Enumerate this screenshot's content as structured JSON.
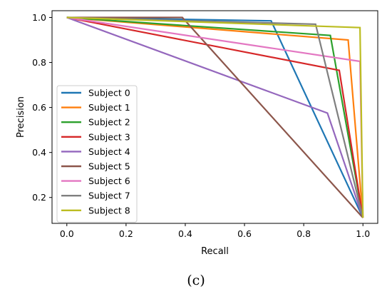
{
  "caption": "(c)",
  "chart_data": {
    "type": "line",
    "xlabel": "Recall",
    "ylabel": "Precision",
    "xlim": [
      -0.05,
      1.05
    ],
    "ylim": [
      0.085,
      1.03
    ],
    "xticks": [
      "0.0",
      "0.2",
      "0.4",
      "0.6",
      "0.8",
      "1.0"
    ],
    "yticks": [
      "0.2",
      "0.4",
      "0.6",
      "0.8",
      "1.0"
    ],
    "grid": false,
    "legend_position": "lower-left",
    "series": [
      {
        "name": "Subject 0",
        "color": "#1f77b4",
        "x": [
          0.0,
          0.69,
          1.0
        ],
        "y": [
          1.0,
          0.985,
          0.11
        ]
      },
      {
        "name": "Subject 1",
        "color": "#ff7f0e",
        "x": [
          0.0,
          0.95,
          1.0
        ],
        "y": [
          1.0,
          0.9,
          0.11
        ]
      },
      {
        "name": "Subject 2",
        "color": "#2ca02c",
        "x": [
          0.0,
          0.89,
          1.0
        ],
        "y": [
          1.0,
          0.92,
          0.11
        ]
      },
      {
        "name": "Subject 3",
        "color": "#d62728",
        "x": [
          0.0,
          0.92,
          1.0
        ],
        "y": [
          1.0,
          0.765,
          0.11
        ]
      },
      {
        "name": "Subject 4",
        "color": "#9467bd",
        "x": [
          0.0,
          0.88,
          1.0
        ],
        "y": [
          1.0,
          0.575,
          0.11
        ]
      },
      {
        "name": "Subject 5",
        "color": "#8c564b",
        "x": [
          0.0,
          0.39,
          1.0
        ],
        "y": [
          1.0,
          1.0,
          0.11
        ]
      },
      {
        "name": "Subject 6",
        "color": "#e377c2",
        "x": [
          0.0,
          0.99,
          1.0
        ],
        "y": [
          1.0,
          0.805,
          0.11
        ]
      },
      {
        "name": "Subject 7",
        "color": "#7f7f7f",
        "x": [
          0.0,
          0.84,
          1.0
        ],
        "y": [
          1.0,
          0.97,
          0.11
        ]
      },
      {
        "name": "Subject 8",
        "color": "#bcbd22",
        "x": [
          0.0,
          0.99,
          1.0
        ],
        "y": [
          1.0,
          0.955,
          0.11
        ]
      }
    ]
  }
}
